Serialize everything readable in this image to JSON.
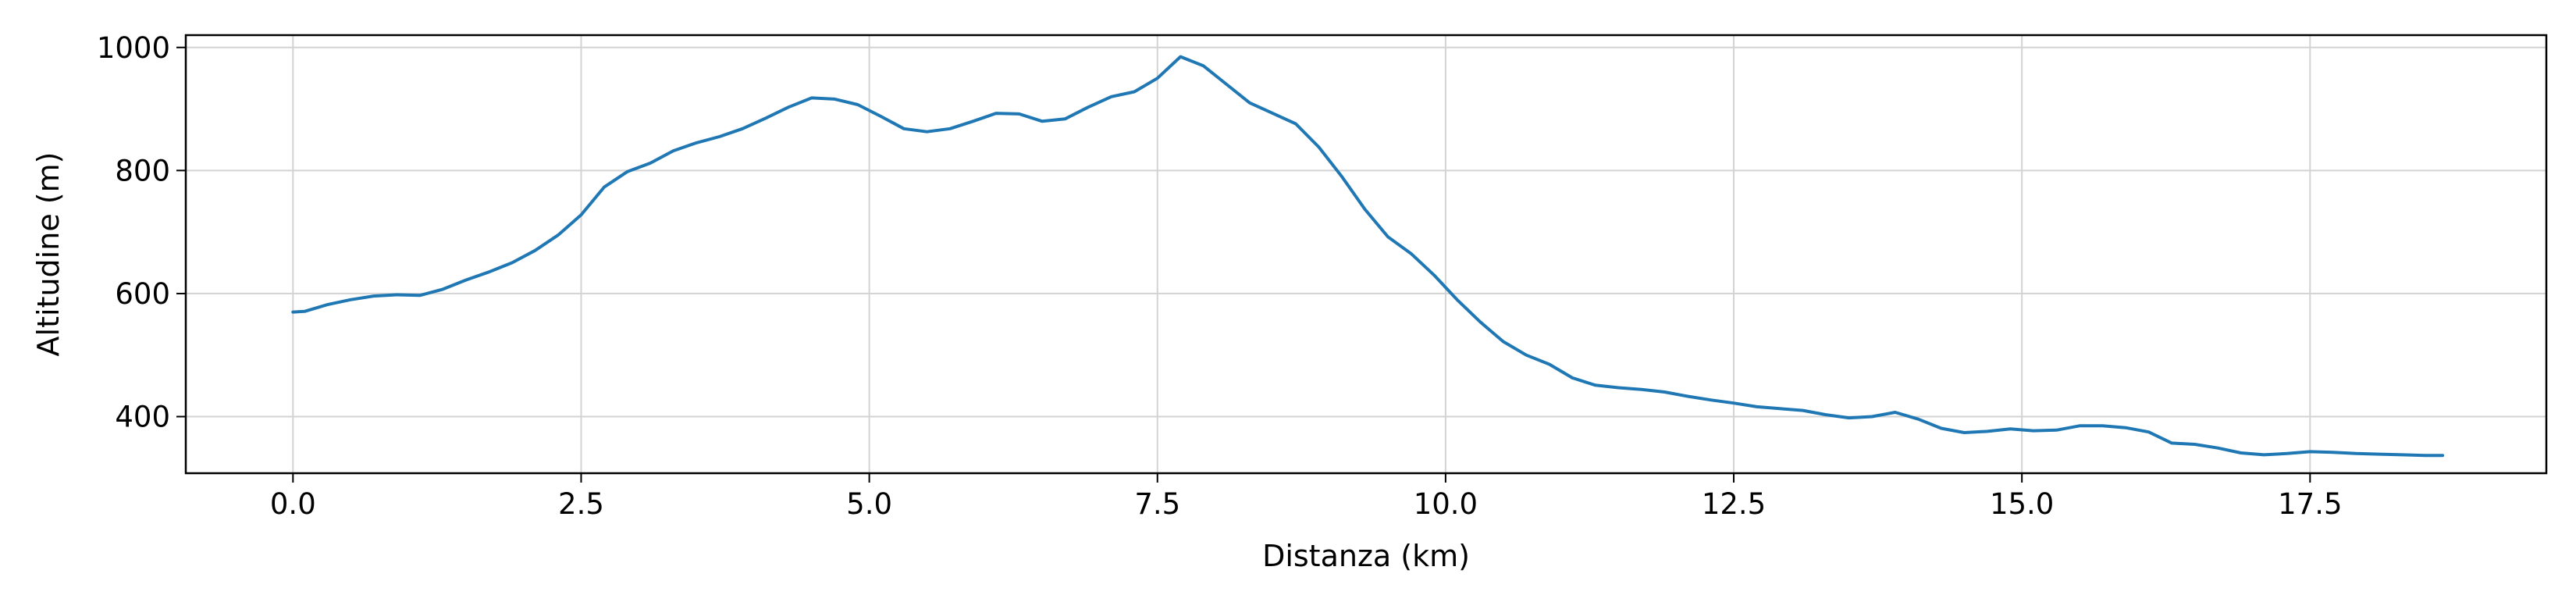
{
  "chart_data": {
    "type": "line",
    "title": "",
    "xlabel": "Distanza (km)",
    "ylabel": "Altitudine (m)",
    "xlim": [
      -0.93,
      19.55
    ],
    "ylim": [
      308,
      1020
    ],
    "x_ticks": [
      0.0,
      2.5,
      5.0,
      7.5,
      10.0,
      12.5,
      15.0,
      17.5
    ],
    "x_tick_labels": [
      "0.0",
      "2.5",
      "5.0",
      "7.5",
      "10.0",
      "12.5",
      "15.0",
      "17.5"
    ],
    "y_ticks": [
      400,
      600,
      800,
      1000
    ],
    "y_tick_labels": [
      "400",
      "600",
      "800",
      "1000"
    ],
    "grid": true,
    "legend": "none",
    "series": [
      {
        "color": "#1f77b4",
        "x": [
          0.0,
          0.1,
          0.3,
          0.5,
          0.7,
          0.9,
          1.1,
          1.3,
          1.5,
          1.7,
          1.9,
          2.1,
          2.3,
          2.5,
          2.7,
          2.9,
          3.1,
          3.3,
          3.5,
          3.7,
          3.9,
          4.1,
          4.3,
          4.5,
          4.7,
          4.9,
          5.1,
          5.3,
          5.5,
          5.7,
          5.9,
          6.1,
          6.3,
          6.5,
          6.7,
          6.9,
          7.1,
          7.3,
          7.5,
          7.7,
          7.9,
          8.1,
          8.3,
          8.5,
          8.7,
          8.9,
          9.1,
          9.3,
          9.5,
          9.7,
          9.9,
          10.1,
          10.3,
          10.5,
          10.7,
          10.9,
          11.1,
          11.3,
          11.5,
          11.7,
          11.9,
          12.1,
          12.3,
          12.5,
          12.7,
          12.9,
          13.1,
          13.3,
          13.5,
          13.7,
          13.9,
          14.1,
          14.3,
          14.5,
          14.7,
          14.9,
          15.1,
          15.3,
          15.5,
          15.7,
          15.9,
          16.1,
          16.3,
          16.5,
          16.7,
          16.9,
          17.1,
          17.3,
          17.5,
          17.7,
          17.9,
          18.1,
          18.3,
          18.5,
          18.65
        ],
        "y": [
          570,
          571,
          582,
          590,
          596,
          598,
          597,
          607,
          622,
          635,
          650,
          670,
          695,
          728,
          773,
          798,
          812,
          832,
          845,
          855,
          868,
          885,
          903,
          918,
          916,
          907,
          888,
          868,
          863,
          868,
          880,
          893,
          892,
          880,
          884,
          903,
          920,
          928,
          950,
          985,
          970,
          940,
          910,
          893,
          876,
          838,
          790,
          737,
          692,
          665,
          630,
          590,
          554,
          522,
          500,
          485,
          463,
          451,
          447,
          444,
          440,
          433,
          427,
          422,
          416,
          413,
          410,
          403,
          398,
          400,
          407,
          396,
          381,
          374,
          376,
          380,
          377,
          378,
          385,
          385,
          382,
          375,
          357,
          355,
          349,
          341,
          338,
          340,
          343,
          342,
          340,
          339,
          338,
          337,
          337
        ]
      }
    ]
  }
}
